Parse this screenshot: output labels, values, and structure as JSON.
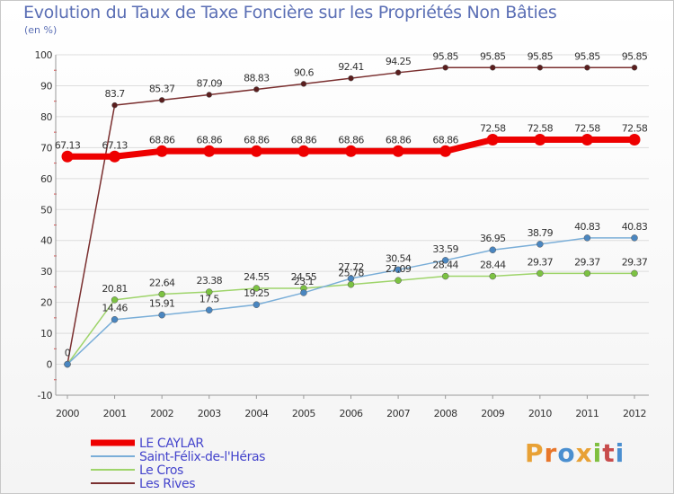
{
  "header": {
    "title": "Evolution du Taux de Taxe Foncière sur les Propriétés Non Bâties",
    "subtitle": "(en %)"
  },
  "logo": {
    "text": "Proxiti",
    "letters": [
      "P",
      "r",
      "o",
      "x",
      "i",
      "t",
      "i"
    ],
    "colors": [
      "#e8a135",
      "#e8762a",
      "#4a8fd0",
      "#e8a135",
      "#7fbf3f",
      "#c84c4c",
      "#4a8fd0"
    ]
  },
  "chart_data": {
    "type": "line",
    "title": "Evolution du Taux de Taxe Foncière sur les Propriétés Non Bâties",
    "ylabel": "(en %)",
    "xlabel": "",
    "ylim": [
      -10,
      100
    ],
    "yticks": [
      -10,
      0,
      10,
      20,
      30,
      40,
      50,
      60,
      70,
      80,
      90,
      100
    ],
    "categories": [
      "2000",
      "2001",
      "2002",
      "2003",
      "2004",
      "2005",
      "2006",
      "2007",
      "2008",
      "2009",
      "2010",
      "2011",
      "2012"
    ],
    "series": [
      {
        "name": "Les Rives",
        "color": "#7a2f2f",
        "point": "#5a1e1e",
        "width": 1.5,
        "r": 3,
        "values": [
          0,
          83.7,
          85.37,
          87.09,
          88.83,
          90.6,
          92.41,
          94.25,
          95.85,
          95.85,
          95.85,
          95.85,
          95.85
        ],
        "labels": [
          "0",
          "83.7",
          "85.37",
          "87.09",
          "88.83",
          "90.6",
          "92.41",
          "94.25",
          "95.85",
          "95.85",
          "95.85",
          "95.85",
          "95.85"
        ]
      },
      {
        "name": "Le Cros",
        "color": "#9ed46a",
        "point": "#7cc242",
        "width": 1.5,
        "r": 3.5,
        "values": [
          0,
          20.81,
          22.64,
          23.38,
          24.55,
          24.55,
          25.78,
          27.09,
          28.44,
          28.44,
          29.37,
          29.37,
          29.37
        ],
        "labels": [
          "",
          "20.81",
          "22.64",
          "23.38",
          "24.55",
          "24.55",
          "25.78",
          "27.09",
          "28.44",
          "28.44",
          "29.37",
          "29.37",
          "29.37"
        ]
      },
      {
        "name": "Saint-Félix-de-l'Héras",
        "color": "#7aaed8",
        "point": "#4a86c0",
        "width": 1.5,
        "r": 3.5,
        "values": [
          0,
          14.46,
          15.91,
          17.5,
          19.25,
          23.1,
          27.72,
          30.54,
          33.59,
          36.95,
          38.79,
          40.83,
          40.83
        ],
        "labels": [
          "",
          "14.46",
          "15.91",
          "17.5",
          "19.25",
          "23.1",
          "27.72",
          "30.54",
          "33.59",
          "36.95",
          "38.79",
          "40.83",
          "40.83"
        ]
      },
      {
        "name": "LE CAYLAR",
        "color": "#ee0000",
        "point": "#ee0000",
        "width": 7,
        "r": 6.5,
        "values": [
          67.13,
          67.13,
          68.86,
          68.86,
          68.86,
          68.86,
          68.86,
          68.86,
          68.86,
          72.58,
          72.58,
          72.58,
          72.58
        ],
        "labels": [
          "67.13",
          "67.13",
          "68.86",
          "68.86",
          "68.86",
          "68.86",
          "68.86",
          "68.86",
          "68.86",
          "72.58",
          "72.58",
          "72.58",
          "72.58"
        ]
      }
    ],
    "legend": [
      {
        "name": "LE CAYLAR",
        "color": "#ee0000",
        "text_color": "#4444cc",
        "thick": true
      },
      {
        "name": "Saint-Félix-de-l'Héras",
        "color": "#7aaed8",
        "text_color": "#4444cc",
        "thick": false
      },
      {
        "name": "Le Cros",
        "color": "#9ed46a",
        "text_color": "#4444cc",
        "thick": false
      },
      {
        "name": "Les Rives",
        "color": "#7a2f2f",
        "text_color": "#4444cc",
        "thick": false
      }
    ],
    "legend_position": "bottom-left"
  }
}
